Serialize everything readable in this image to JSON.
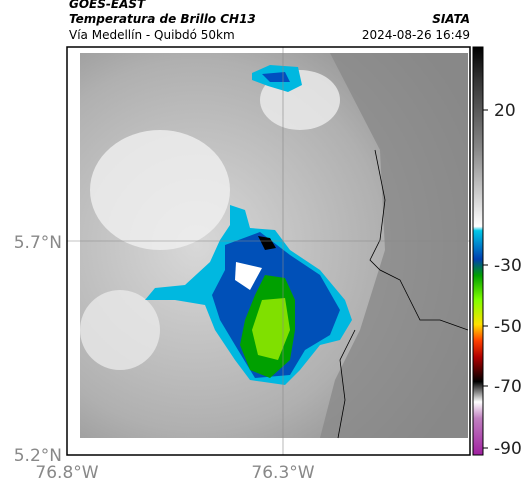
{
  "header": {
    "title": "GOES-EAST",
    "subtitle": "Temperatura de Brillo CH13",
    "source": "SIATA",
    "location": "Vía Medellín - Quibdó 50km",
    "datetime": "2024-08-26 16:49"
  },
  "map": {
    "xticks": [
      "76.8°W",
      "76.3°W"
    ],
    "yticks": [
      "5.7°N",
      "5.2°N"
    ]
  },
  "colorbar": {
    "ticks": [
      20,
      -30,
      -50,
      -70,
      -90
    ]
  }
}
